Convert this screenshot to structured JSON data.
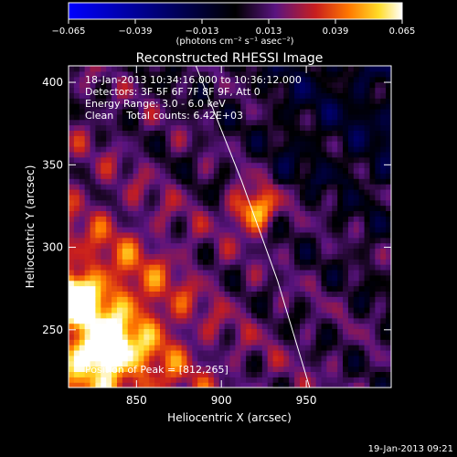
{
  "chart_data": {
    "type": "heatmap",
    "title": "Reconstructed RHESSI Image",
    "xlabel": "Heliocentric X (arcsec)",
    "ylabel": "Heliocentric Y (arcsec)",
    "xlim": [
      810,
      1000
    ],
    "ylim": [
      215,
      410
    ],
    "xticks": [
      850,
      900,
      950
    ],
    "yticks": [
      250,
      300,
      350,
      400
    ],
    "colorbar": {
      "ticks": [
        "−0.065",
        "−0.039",
        "−0.013",
        "0.013",
        "0.039",
        "0.065"
      ],
      "range": [
        -0.065,
        0.065
      ],
      "unit_label": "(photons cm⁻² s⁻¹ asec⁻²)",
      "colors": [
        "#0000ff",
        "#000000",
        "#5a1480",
        "#c81e1e",
        "#ff7800",
        "#ffdc28",
        "#ffffff"
      ]
    },
    "annotations": [
      "18-Jan-2013 10:34:16.000 to 10:36:12.000",
      "Detectors: 3F 5F 6F 7F 8F 9F, Att 0",
      "Energy Range: 3.0 - 6.0 keV",
      "Clean    Total counts: 6.42E+03"
    ],
    "peak_label": "Position of Peak = [812,265]",
    "peak": [
      812,
      265
    ],
    "sources": [
      {
        "x": 812,
        "y": 268,
        "amp": 0.065
      },
      {
        "x": 832,
        "y": 238,
        "amp": 0.058
      },
      {
        "x": 919,
        "y": 323,
        "amp": 0.05
      }
    ],
    "limb_curve": [
      [
        885,
        410
      ],
      [
        912,
        340
      ],
      [
        933,
        280
      ],
      [
        952,
        215
      ]
    ],
    "date_stamp": "19-Jan-2013 09:21"
  }
}
